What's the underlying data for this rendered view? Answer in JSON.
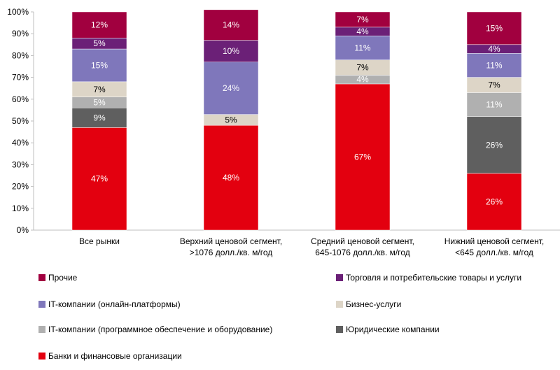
{
  "chart_data": {
    "type": "bar",
    "stacked": true,
    "percent": true,
    "categories": [
      [
        "Все рынки"
      ],
      [
        "Верхний ценовой сегмент,",
        ">1076 долл./кв. м/год"
      ],
      [
        "Средний ценовой сегмент,",
        "645-1076 долл./кв. м/год"
      ],
      [
        "Нижний ценовой сегмент,",
        "<645 долл./кв. м/год"
      ]
    ],
    "series": [
      {
        "name": "Банки и финансовые организации",
        "color": "#e3000f",
        "values": [
          47,
          48,
          67,
          26
        ]
      },
      {
        "name": "Юридические компании",
        "color": "#5f5f5f",
        "values": [
          9,
          0,
          0,
          26
        ]
      },
      {
        "name": "IT-компании (программное обеспечение и оборудование)",
        "color": "#b0b0b0",
        "values": [
          5,
          0,
          4,
          11
        ]
      },
      {
        "name": "Бизнес-услуги",
        "color": "#ddd5c7",
        "values": [
          7,
          5,
          7,
          7
        ]
      },
      {
        "name": "IT-компании (онлайн-платформы)",
        "color": "#7f77bb",
        "values": [
          15,
          24,
          11,
          11
        ]
      },
      {
        "name": "Торговля и потребительские товары и услуги",
        "color": "#6b2077",
        "values": [
          5,
          10,
          4,
          4
        ]
      },
      {
        "name": "Прочие",
        "color": "#a1003f",
        "values": [
          12,
          14,
          7,
          15
        ]
      }
    ],
    "yticks": [
      "0%",
      "10%",
      "20%",
      "30%",
      "40%",
      "50%",
      "60%",
      "70%",
      "80%",
      "90%",
      "100%"
    ],
    "ylim": [
      0,
      100
    ],
    "grid": false,
    "legend_position": "bottom"
  },
  "legend": [
    {
      "label": "Прочие",
      "color": "#a1003f"
    },
    {
      "label": "Торговля и потребительские товары и услуги",
      "color": "#6b2077"
    },
    {
      "label": "IT-компании (онлайн-платформы)",
      "color": "#7f77bb"
    },
    {
      "label": "Бизнес-услуги",
      "color": "#ddd5c7"
    },
    {
      "label": "IT-компании (программное обеспечение и оборудование)",
      "color": "#b0b0b0"
    },
    {
      "label": "Юридические компании",
      "color": "#5f5f5f"
    },
    {
      "label": "Банки и финансовые организации",
      "color": "#e3000f"
    }
  ]
}
